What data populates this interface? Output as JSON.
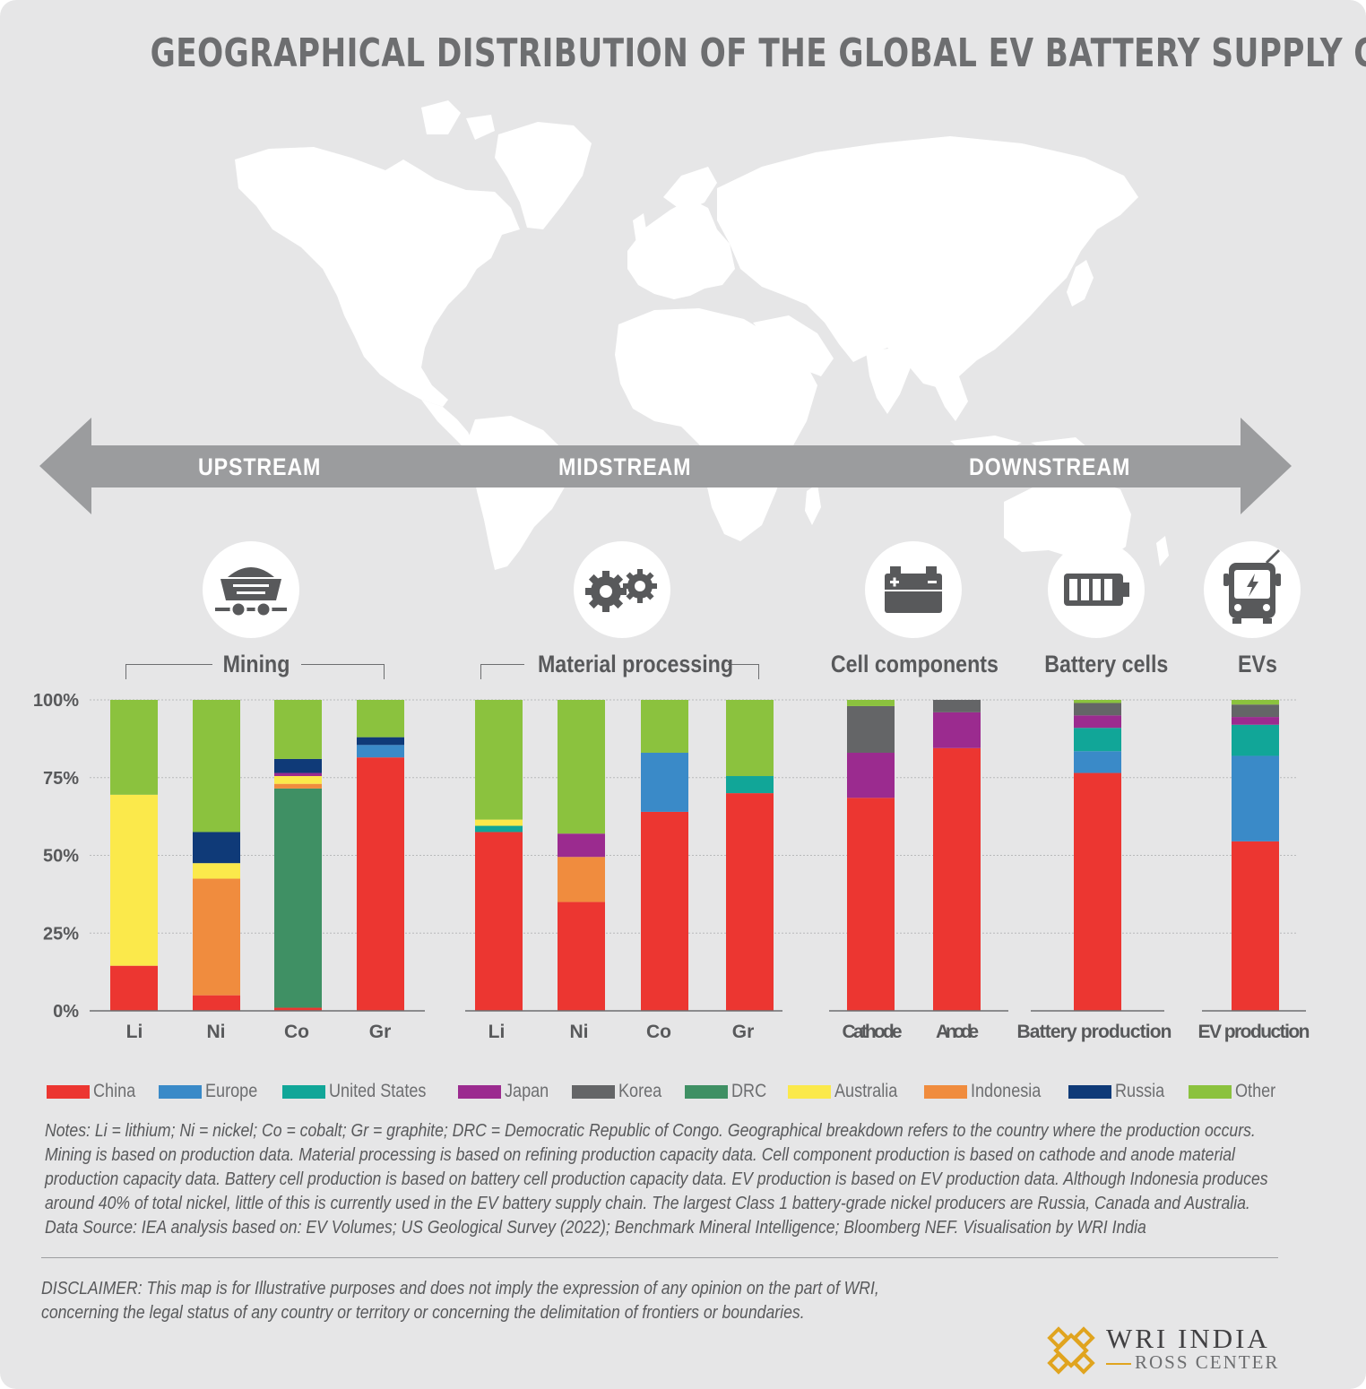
{
  "title": "GEOGRAPHICAL DISTRIBUTION OF THE GLOBAL EV BATTERY SUPPLY CHAIN",
  "streams": {
    "upstream": "UPSTREAM",
    "midstream": "MIDSTREAM",
    "downstream": "DOWNSTREAM"
  },
  "icons": [
    "mine-cart-icon",
    "gears-icon",
    "car-battery-icon",
    "battery-icon",
    "electric-bus-icon"
  ],
  "groups": {
    "mining": "Mining",
    "material_processing": "Material processing",
    "cell_components": "Cell components",
    "battery_cells": "Battery cells",
    "evs": "EVs"
  },
  "chart_data": {
    "type": "bar",
    "stacked": true,
    "normalized": true,
    "y_ticks": [
      "0%",
      "25%",
      "50%",
      "75%",
      "100%"
    ],
    "ylim": [
      0,
      100
    ],
    "grid": true,
    "legend_position": "bottom",
    "colors": {
      "China": "#ec3631",
      "Europe": "#3a8ac8",
      "United States": "#11a698",
      "Japan": "#9b2b8f",
      "Korea": "#646567",
      "DRC": "#3f9064",
      "Australia": "#fbe94b",
      "Indonesia": "#f08c3e",
      "Russia": "#0f3a78",
      "Other": "#8bc23e"
    },
    "legend": [
      "China",
      "Europe",
      "United States",
      "Japan",
      "Korea",
      "DRC",
      "Australia",
      "Indonesia",
      "Russia",
      "Other"
    ],
    "bars": [
      {
        "group": "Mining",
        "label": "Li",
        "segments": {
          "Australia": 55,
          "China": 14.5,
          "Other": 30.5
        }
      },
      {
        "group": "Mining",
        "label": "Ni",
        "segments": {
          "Indonesia": 37.5,
          "Australia": 5,
          "China": 5,
          "Russia": 10,
          "Other": 42.5
        }
      },
      {
        "group": "Mining",
        "label": "Co",
        "segments": {
          "DRC": 70.5,
          "Indonesia": 1.5,
          "Australia": 2.5,
          "China": 1,
          "Japan": 1,
          "Russia": 4.5,
          "Other": 19
        }
      },
      {
        "group": "Mining",
        "label": "Gr",
        "segments": {
          "China": 81.5,
          "Russia": 2.5,
          "Europe": 4,
          "Other": 12
        }
      },
      {
        "group": "Material processing",
        "label": "Li",
        "segments": {
          "China": 57.5,
          "Australia": 2,
          "United States": 2,
          "Other": 38.5
        }
      },
      {
        "group": "Material processing",
        "label": "Ni",
        "segments": {
          "China": 35,
          "Indonesia": 14.5,
          "Japan": 7.5,
          "Other": 43
        }
      },
      {
        "group": "Material processing",
        "label": "Co",
        "segments": {
          "China": 64,
          "Europe": 19,
          "Other": 17
        }
      },
      {
        "group": "Material processing",
        "label": "Gr",
        "segments": {
          "China": 70,
          "United States": 5.5,
          "Other": 24.5
        }
      },
      {
        "group": "Cell components",
        "label": "Cathode",
        "segments": {
          "China": 68.5,
          "Japan": 14.5,
          "Korea": 15,
          "Other": 2
        }
      },
      {
        "group": "Cell components",
        "label": "Anode",
        "segments": {
          "China": 84.5,
          "Japan": 11.5,
          "Korea": 4
        }
      },
      {
        "group": "Battery cells",
        "label": "Battery production",
        "segments": {
          "China": 76.5,
          "Europe": 7,
          "United States": 7.5,
          "Korea": 4,
          "Japan": 4,
          "Other": 1
        }
      },
      {
        "group": "EVs",
        "label": "EV production",
        "segments": {
          "China": 54.5,
          "Europe": 27.5,
          "United States": 10,
          "Korea": 4,
          "Japan": 2.5,
          "Other": 1.5
        }
      }
    ]
  },
  "notes": [
    "Notes: Li = lithium; Ni = nickel; Co = cobalt; Gr = graphite; DRC = Democratic Republic of Congo. Geographical breakdown refers to the country where the production occurs.",
    "Mining is based on production data. Material processing is based on refining production capacity data. Cell component production is based on cathode and anode material",
    "production capacity data. Battery cell production is based on battery cell production capacity data. EV production is based on EV production data. Although Indonesia produces",
    "around 40% of total nickel, little of this is currently used in the EV battery supply chain. The largest Class 1 battery-grade nickel producers are Russia, Canada and Australia.",
    "Data Source: IEA analysis based on: EV Volumes; US Geological Survey (2022); Benchmark Mineral Intelligence; Bloomberg NEF.  Visualisation by WRI India"
  ],
  "disclaimer": [
    "DISCLAIMER: This map is for Illustrative purposes and does not imply the expression of any opinion on the part of WRI,",
    "concerning the legal status of any country or territory or concerning the delimitation of frontiers or boundaries."
  ],
  "brand": {
    "name": "WRI INDIA",
    "sub": "ROSS CENTER",
    "logo_icon": "wri-knot-logo-icon"
  }
}
